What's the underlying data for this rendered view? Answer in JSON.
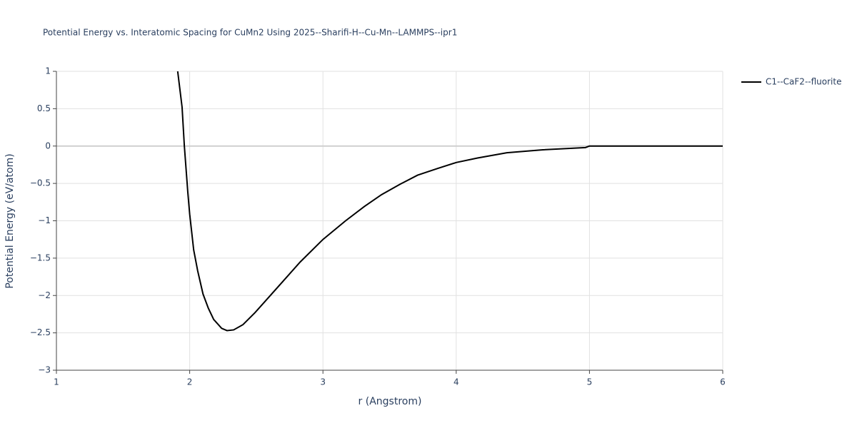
{
  "chart_data": {
    "type": "line",
    "title": "Potential Energy vs. Interatomic Spacing for CuMn2 Using 2025--Sharifi-H--Cu-Mn--LAMMPS--ipr1",
    "x_label": "r (Angstrom)",
    "y_label": "Potential Energy (eV/atom)",
    "x": [
      1.91,
      1.943,
      1.96,
      1.986,
      2.0,
      2.03,
      2.06,
      2.1,
      2.14,
      2.18,
      2.24,
      2.28,
      2.33,
      2.4,
      2.49,
      2.6,
      2.72,
      2.83,
      3.0,
      3.17,
      3.31,
      3.44,
      3.58,
      3.71,
      3.86,
      4.0,
      4.16,
      4.38,
      4.65,
      4.97,
      5.0,
      5.5,
      6.0
    ],
    "series": [
      {
        "name": "C1--CaF2--fluorite",
        "color": "#000000",
        "values": [
          1,
          0.52,
          0,
          -0.62,
          -0.91,
          -1.39,
          -1.67,
          -1.98,
          -2.17,
          -2.32,
          -2.44,
          -2.47,
          -2.46,
          -2.39,
          -2.23,
          -2.01,
          -1.77,
          -1.55,
          -1.25,
          -1.0,
          -0.81,
          -0.65,
          -0.51,
          -0.39,
          -0.3,
          -0.22,
          -0.16,
          -0.09,
          -0.05,
          -0.02,
          0,
          0,
          0
        ]
      }
    ],
    "xlim": [
      1,
      6
    ],
    "xticks": [
      1,
      2,
      3,
      4,
      5,
      6
    ],
    "ylim": [
      -3,
      1
    ],
    "yticks": [
      {
        "value": -3,
        "label": "−3"
      },
      {
        "value": -2.5,
        "label": "−2.5"
      },
      {
        "value": -2,
        "label": "−2"
      },
      {
        "value": -1.5,
        "label": "−1.5"
      },
      {
        "value": -1,
        "label": "−1"
      },
      {
        "value": -0.5,
        "label": "−0.5"
      },
      0,
      0.5,
      1
    ],
    "grid": true
  }
}
